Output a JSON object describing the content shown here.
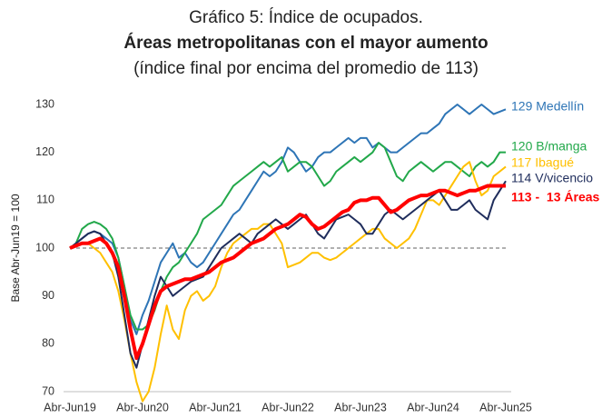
{
  "chart_data": {
    "type": "line",
    "title": "Gráfico 5: Índice de ocupados.",
    "subtitle": "Áreas metropolitanas con el mayor aumento",
    "note": "(índice final por encima del promedio de 113)",
    "y_label": "Base Abr-Jun19  = 100",
    "categories": [
      "Abr-Jun19",
      null,
      null,
      null,
      null,
      null,
      null,
      null,
      null,
      null,
      null,
      null,
      "Abr-Jun20",
      null,
      null,
      null,
      null,
      null,
      null,
      null,
      null,
      null,
      null,
      null,
      "Abr-Jun21",
      null,
      null,
      null,
      null,
      null,
      null,
      null,
      null,
      null,
      null,
      null,
      "Abr-Jun22",
      null,
      null,
      null,
      null,
      null,
      null,
      null,
      null,
      null,
      null,
      null,
      "Abr-Jun23",
      null,
      null,
      null,
      null,
      null,
      null,
      null,
      null,
      null,
      null,
      null,
      "Abr-Jun24",
      null,
      null,
      null,
      null,
      null,
      null,
      null,
      null,
      null,
      null,
      null,
      "Abr-Jun25"
    ],
    "ylim": [
      70,
      130
    ],
    "yticks": [
      70,
      80,
      90,
      100,
      110,
      120,
      130
    ],
    "reference_line": 100,
    "series": [
      {
        "name": "129 Medellín",
        "color": "#2e75b6",
        "values": [
          100,
          101,
          102,
          103,
          103.5,
          103,
          102,
          101,
          98,
          92,
          85,
          82,
          86,
          89,
          93,
          97,
          99,
          101,
          98,
          99,
          97,
          96,
          97,
          99,
          101,
          103,
          105,
          107,
          108,
          110,
          112,
          114,
          116,
          115,
          116,
          118,
          121,
          120,
          118,
          116,
          117,
          119,
          120,
          120,
          121,
          122,
          123,
          122,
          123,
          123,
          121,
          122,
          121,
          120,
          120,
          121,
          122,
          123,
          124,
          124,
          125,
          126,
          128,
          129,
          130,
          129,
          128,
          129,
          130,
          129,
          128,
          128.5,
          129
        ]
      },
      {
        "name": "120 B/manga",
        "color": "#22a84a",
        "values": [
          100,
          101,
          104,
          105,
          105.5,
          105,
          104,
          102,
          98,
          92,
          86,
          83,
          83,
          84,
          87,
          91,
          94,
          96,
          97,
          99,
          101,
          103,
          106,
          107,
          108,
          109,
          111,
          113,
          114,
          115,
          116,
          117,
          118,
          117,
          118,
          119,
          116,
          117,
          118,
          118,
          117,
          115,
          113,
          114,
          116,
          117,
          118,
          119,
          118,
          119,
          120,
          122,
          121,
          118,
          115,
          114,
          116,
          117,
          118,
          117,
          116,
          117,
          118,
          118,
          117,
          116,
          115,
          117,
          118,
          117,
          118,
          120,
          120
        ]
      },
      {
        "name": "117 Ibagué",
        "color": "#ffc000",
        "values": [
          100,
          100.5,
          101,
          101,
          100,
          99,
          97,
          95,
          91,
          85,
          78,
          72,
          68,
          70,
          75,
          82,
          88,
          83,
          81,
          87,
          90,
          91,
          89,
          90,
          92,
          96,
          99,
          101,
          102,
          103,
          104,
          104,
          105,
          105,
          103,
          101,
          96,
          96.5,
          97,
          98,
          99,
          99,
          98,
          97.5,
          98,
          99,
          100,
          101,
          102,
          103,
          104,
          104,
          102,
          101,
          100,
          101,
          102,
          104,
          107,
          110,
          110,
          109,
          111,
          113,
          115,
          117,
          118,
          114,
          111,
          112,
          115,
          116,
          117
        ]
      },
      {
        "name": "114 V/vicencio",
        "color": "#1f2d5c",
        "values": [
          100,
          101,
          102,
          103,
          103.5,
          103,
          101,
          99,
          94,
          86,
          78,
          75,
          80,
          85,
          90,
          94,
          92,
          90,
          91,
          92,
          93,
          93.5,
          94,
          96,
          98,
          100,
          101,
          102,
          103,
          102,
          101,
          103,
          104,
          105,
          106,
          105,
          104,
          105,
          106,
          107,
          105,
          103,
          102,
          104,
          106,
          106.5,
          107,
          106,
          105,
          103,
          103,
          105,
          107,
          108,
          107,
          106,
          107,
          108,
          109,
          110,
          111,
          112,
          110,
          108,
          108,
          109,
          110,
          108,
          107,
          106,
          110,
          112,
          114
        ]
      },
      {
        "name": "113 -  13 Áreas",
        "color": "#ff0000",
        "values": [
          100,
          100.5,
          101,
          101,
          101.5,
          102,
          101,
          99,
          96,
          90,
          83,
          77,
          80,
          84,
          88,
          91,
          92,
          92.5,
          93,
          93.5,
          93.5,
          94,
          94.5,
          95,
          96,
          97,
          97.5,
          98,
          99,
          100,
          101,
          101.5,
          102,
          103,
          104,
          104.5,
          105,
          106,
          107,
          106.5,
          105,
          104,
          104.5,
          105.5,
          106.5,
          107.5,
          108,
          109.5,
          110,
          110,
          110.5,
          110.5,
          109,
          107.5,
          108,
          109,
          110,
          110.5,
          111,
          111,
          111.5,
          112,
          112,
          111.5,
          111,
          111.5,
          112,
          112,
          112.5,
          113,
          113,
          113,
          113
        ]
      }
    ]
  }
}
